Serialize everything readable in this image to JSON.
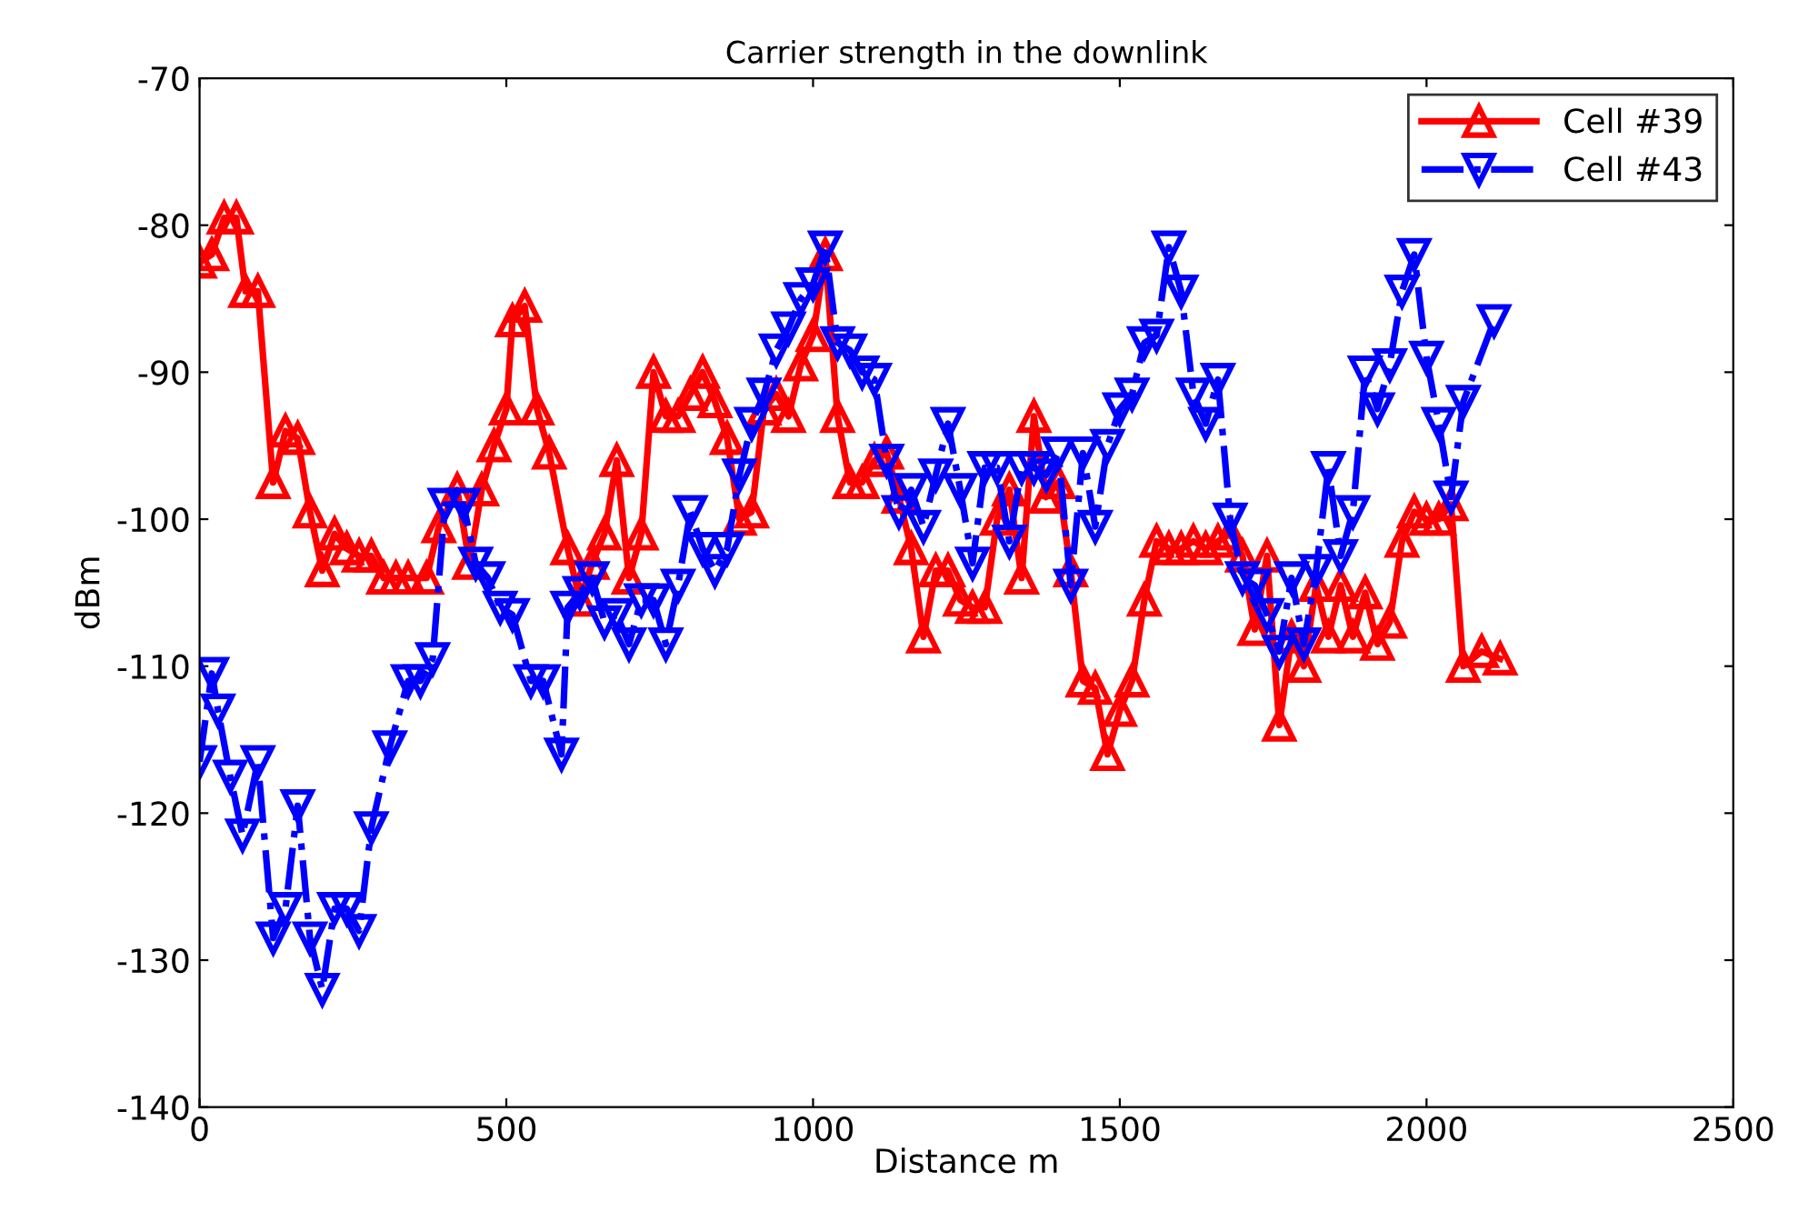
{
  "chart_data": {
    "type": "line",
    "title": "Carrier strength in the downlink",
    "xlabel": "Distance m",
    "ylabel": "dBm",
    "xlim": [
      0,
      2500
    ],
    "ylim": [
      -140,
      -70
    ],
    "xticks": [
      0,
      500,
      1000,
      1500,
      2000,
      2500
    ],
    "yticks": [
      -140,
      -130,
      -120,
      -110,
      -100,
      -90,
      -80,
      -70
    ],
    "legend": "top right",
    "grid": false,
    "series": [
      {
        "name": "Cell #39",
        "color": "#ff0000",
        "marker": "triangle",
        "line_style": "solid",
        "x": [
          0,
          20,
          40,
          60,
          75,
          95,
          120,
          140,
          160,
          180,
          200,
          220,
          240,
          260,
          280,
          300,
          320,
          340,
          370,
          390,
          420,
          440,
          460,
          480,
          500,
          510,
          530,
          550,
          570,
          600,
          620,
          640,
          660,
          680,
          700,
          720,
          740,
          760,
          780,
          800,
          820,
          840,
          860,
          880,
          900,
          920,
          940,
          960,
          980,
          1000,
          1020,
          1040,
          1060,
          1080,
          1100,
          1120,
          1140,
          1160,
          1180,
          1200,
          1220,
          1240,
          1260,
          1280,
          1300,
          1320,
          1340,
          1360,
          1380,
          1400,
          1420,
          1440,
          1460,
          1480,
          1500,
          1520,
          1540,
          1560,
          1580,
          1600,
          1620,
          1640,
          1660,
          1680,
          1700,
          1720,
          1740,
          1760,
          1780,
          1800,
          1820,
          1840,
          1860,
          1880,
          1900,
          1920,
          1940,
          1960,
          1980,
          2000,
          2020,
          2040,
          2060,
          2090,
          2120
        ],
        "values": [
          -82.5,
          -82,
          -79.5,
          -79.5,
          -84.5,
          -84.5,
          -97.5,
          -94,
          -94.5,
          -99.5,
          -103.5,
          -101,
          -102,
          -102.5,
          -102.5,
          -104,
          -104,
          -104,
          -104,
          -100.5,
          -98,
          -103,
          -98,
          -95,
          -92.5,
          -86.5,
          -85.5,
          -92.5,
          -95.5,
          -102,
          -105.5,
          -103,
          -101,
          -96,
          -104,
          -101,
          -90,
          -93,
          -93,
          -91.5,
          -90,
          -92,
          -94.5,
          -100,
          -99.5,
          -92.5,
          -91.5,
          -93,
          -89.5,
          -87.5,
          -82,
          -93,
          -97.5,
          -97.5,
          -96,
          -95.5,
          -98.5,
          -102,
          -108,
          -103.5,
          -103.5,
          -105.5,
          -106,
          -106,
          -100,
          -98,
          -104,
          -93,
          -98.5,
          -97.5,
          -103.5,
          -111,
          -111.5,
          -116,
          -113,
          -111,
          -105.5,
          -101.5,
          -102,
          -102,
          -101.5,
          -102,
          -101.5,
          -101,
          -102.5,
          -107.5,
          -102.5,
          -114,
          -108,
          -110,
          -104.5,
          -108,
          -104.5,
          -108,
          -105,
          -108.5,
          -107,
          -101.5,
          -99.5,
          -100,
          -100,
          -99,
          -110,
          -109,
          -109.5
        ]
      },
      {
        "name": "Cell #43",
        "color": "#0000ff",
        "marker": "triangle_down",
        "line_style": "dashdot",
        "x": [
          0,
          20,
          30,
          50,
          70,
          95,
          120,
          140,
          160,
          180,
          200,
          220,
          240,
          260,
          280,
          310,
          340,
          360,
          380,
          400,
          430,
          450,
          470,
          490,
          510,
          540,
          560,
          590,
          600,
          620,
          640,
          660,
          680,
          700,
          720,
          740,
          760,
          780,
          800,
          820,
          840,
          860,
          880,
          900,
          920,
          940,
          960,
          980,
          1000,
          1020,
          1040,
          1060,
          1080,
          1100,
          1120,
          1140,
          1160,
          1180,
          1200,
          1220,
          1240,
          1260,
          1280,
          1300,
          1320,
          1340,
          1360,
          1380,
          1400,
          1420,
          1440,
          1460,
          1480,
          1500,
          1520,
          1540,
          1560,
          1580,
          1600,
          1620,
          1640,
          1660,
          1680,
          1700,
          1720,
          1740,
          1760,
          1780,
          1800,
          1820,
          1840,
          1860,
          1880,
          1900,
          1920,
          1940,
          1960,
          1980,
          2000,
          2020,
          2040,
          2060,
          2110
        ],
        "values": [
          -116.5,
          -110.5,
          -113,
          -117.5,
          -121.5,
          -116.5,
          -128.5,
          -126.5,
          -119.5,
          -128.5,
          -132,
          -126.5,
          -126.5,
          -128,
          -121,
          -115.5,
          -111,
          -111,
          -109.5,
          -99,
          -99,
          -103,
          -104,
          -106,
          -106.5,
          -111,
          -111,
          -116,
          -106,
          -105,
          -104,
          -107,
          -106.5,
          -108.5,
          -105.5,
          -105.5,
          -108.5,
          -104.5,
          -99.5,
          -102,
          -103.5,
          -102,
          -97,
          -93.5,
          -91.5,
          -88.5,
          -87,
          -85,
          -84,
          -81.5,
          -88,
          -88.5,
          -90,
          -90.5,
          -96,
          -99.5,
          -98,
          -100.5,
          -97,
          -93.5,
          -98,
          -103,
          -96.5,
          -96.5,
          -101.5,
          -96.5,
          -96.5,
          -97,
          -95.5,
          -104.5,
          -95.5,
          -100.5,
          -95,
          -92.5,
          -91.5,
          -88,
          -87.5,
          -81.5,
          -84.5,
          -91.5,
          -93.5,
          -90.5,
          -100,
          -104,
          -104.5,
          -106.5,
          -109,
          -104,
          -108.5,
          -103.5,
          -96.5,
          -102.5,
          -99.5,
          -90,
          -92.5,
          -89.5,
          -84.5,
          -82,
          -89,
          -93.5,
          -98.5,
          -92,
          -86.5
        ]
      }
    ]
  }
}
